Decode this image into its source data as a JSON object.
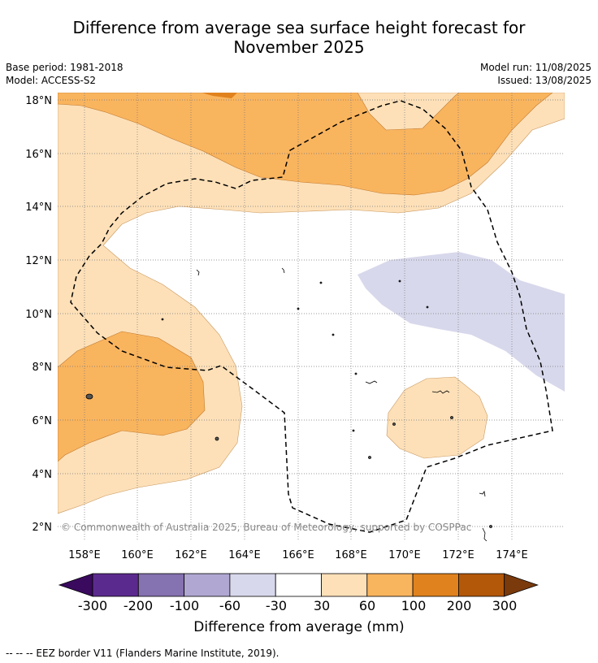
{
  "header": {
    "title_line1": "Difference from average sea surface height forecast for",
    "title_line2": "November 2025",
    "base_period": "Base period: 1981-2018",
    "model": "Model: ACCESS-S2",
    "model_run": "Model run: 11/08/2025",
    "issued": "Issued: 13/08/2025"
  },
  "map": {
    "lon_ticks": [
      "158°E",
      "160°E",
      "162°E",
      "164°E",
      "166°E",
      "168°E",
      "170°E",
      "172°E",
      "174°E"
    ],
    "lat_ticks": [
      "18°N",
      "16°N",
      "14°N",
      "12°N",
      "10°N",
      "8°N",
      "6°N",
      "4°N",
      "2°N"
    ],
    "copyright": "© Commonwealth of Australia 2025, Bureau of Meteorology, supported by COSPPac"
  },
  "colorbar": {
    "labels": [
      "-300",
      "-200",
      "-100",
      "-60",
      "-30",
      "30",
      "60",
      "100",
      "200",
      "300"
    ],
    "colors": [
      "#3a0a5e",
      "#5b2a8e",
      "#8572b0",
      "#b0a8d2",
      "#d8d8ec",
      "#ffffff",
      "#fde0b8",
      "#f9b45e",
      "#e0821e",
      "#b35709",
      "#7a3a0c"
    ],
    "title": "Difference from average (mm)"
  },
  "footnote": "-- -- -- EEZ border V11 (Flanders Marine Institute, 2019)."
}
